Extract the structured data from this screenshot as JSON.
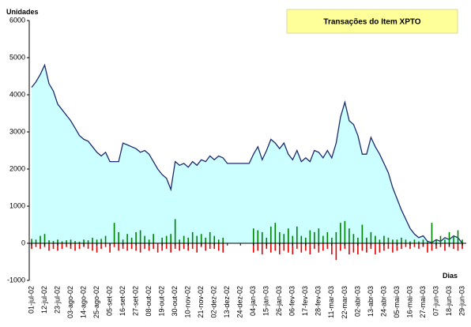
{
  "chart_data": {
    "type": "combo",
    "title": "Transações do Item XPTO",
    "y_label": "Unidades",
    "x_label": "Dias",
    "categories": [
      "01-jul-02",
      null,
      null,
      "12-jul-02",
      null,
      null,
      "23-jul-02",
      null,
      null,
      "03-ago-02",
      null,
      null,
      "14-ago-02",
      null,
      null,
      "25-ago-02",
      null,
      null,
      "05-set-02",
      null,
      null,
      "16-set-02",
      null,
      null,
      "27-set-02",
      null,
      null,
      "08-out-02",
      null,
      null,
      "19-out-02",
      null,
      null,
      "30-out-02",
      null,
      null,
      "10-nov-02",
      null,
      null,
      "21-nov-02",
      null,
      null,
      "02-dez-02",
      null,
      null,
      "13-dez-02",
      null,
      null,
      "24-dez-02",
      null,
      null,
      "04-jan-03",
      null,
      null,
      "15-jan-03",
      null,
      null,
      "26-jan-03",
      null,
      null,
      "06-fev-03",
      null,
      null,
      "17-fev-03",
      null,
      null,
      "28-fev-03",
      null,
      null,
      "11-mar-03",
      null,
      null,
      "22-mar-03",
      null,
      null,
      "02-abr-03",
      null,
      null,
      "13-abr-03",
      null,
      null,
      "24-abr-03",
      null,
      null,
      "05-mai-03",
      null,
      null,
      "16-mai-03",
      null,
      null,
      "27-mai-03",
      null,
      null,
      "07-jun-03",
      null,
      null,
      "18-jun-03",
      null,
      null,
      "29-jun-03"
    ],
    "series": [
      {
        "type": "area",
        "color": "#1f2a6e",
        "fill": "#ccffff",
        "values": [
          4200,
          4350,
          4550,
          4800,
          4300,
          4100,
          3750,
          3600,
          3450,
          3300,
          3100,
          2900,
          2800,
          2750,
          2600,
          2450,
          2350,
          2450,
          2200,
          2200,
          2200,
          2700,
          2650,
          2600,
          2550,
          2450,
          2500,
          2400,
          2200,
          2000,
          1850,
          1750,
          1450,
          2200,
          2100,
          2150,
          2050,
          2200,
          2100,
          2250,
          2200,
          2350,
          2250,
          2350,
          2300,
          2150,
          2150,
          2150,
          2150,
          2150,
          2150,
          2400,
          2600,
          2250,
          2500,
          2800,
          2700,
          2550,
          2700,
          2400,
          2250,
          2500,
          2200,
          2300,
          2200,
          2500,
          2450,
          2300,
          2500,
          2300,
          2700,
          3400,
          3800,
          3300,
          3200,
          2900,
          2400,
          2400,
          2850,
          2600,
          2400,
          2150,
          1900,
          1500,
          1200,
          900,
          650,
          400,
          250,
          150,
          200,
          50,
          20,
          100,
          50,
          150,
          100,
          200,
          150,
          0
        ]
      },
      {
        "type": "bar",
        "color": "#008000",
        "values": [
          120,
          100,
          200,
          250,
          80,
          60,
          100,
          50,
          80,
          100,
          60,
          40,
          100,
          80,
          150,
          100,
          120,
          200,
          0,
          550,
          300,
          100,
          250,
          150,
          300,
          350,
          200,
          100,
          250,
          0,
          150,
          200,
          250,
          650,
          100,
          200,
          150,
          300,
          200,
          250,
          150,
          300,
          200,
          100,
          150,
          0,
          0,
          0,
          0,
          0,
          0,
          400,
          350,
          300,
          150,
          450,
          550,
          300,
          250,
          400,
          200,
          450,
          200,
          150,
          350,
          300,
          400,
          200,
          300,
          150,
          300,
          550,
          600,
          400,
          250,
          150,
          500,
          150,
          300,
          200,
          100,
          200,
          150,
          100,
          100,
          150,
          100,
          50,
          100,
          50,
          100,
          50,
          550,
          100,
          200,
          100,
          300,
          200,
          350,
          100
        ]
      },
      {
        "type": "bar",
        "color": "#e00000",
        "values": [
          -150,
          -100,
          -150,
          -100,
          -200,
          -150,
          -200,
          -150,
          -100,
          -150,
          -200,
          -150,
          -100,
          -150,
          -200,
          -250,
          -150,
          -100,
          -250,
          -100,
          -200,
          -150,
          -200,
          -150,
          -200,
          -250,
          -150,
          -200,
          -150,
          -250,
          -200,
          -150,
          -250,
          -150,
          -200,
          -150,
          -200,
          -150,
          -250,
          -100,
          -200,
          -150,
          -150,
          -200,
          -250,
          0,
          0,
          0,
          0,
          0,
          0,
          -250,
          -200,
          -300,
          -150,
          -250,
          -200,
          -300,
          -200,
          -250,
          -300,
          -150,
          -250,
          -200,
          -300,
          -150,
          -250,
          -200,
          -150,
          -300,
          -450,
          -200,
          -150,
          -300,
          -250,
          -300,
          -200,
          -250,
          -150,
          -300,
          -250,
          -200,
          -150,
          -250,
          -200,
          -150,
          -100,
          -150,
          -100,
          -150,
          -100,
          -250,
          -200,
          -150,
          -100,
          -200,
          -100,
          -150,
          -200,
          -150
        ]
      }
    ],
    "ylim": [
      -1000,
      6000
    ],
    "yticks": [
      -1000,
      0,
      1000,
      2000,
      3000,
      4000,
      5000,
      6000
    ],
    "grid": false
  }
}
